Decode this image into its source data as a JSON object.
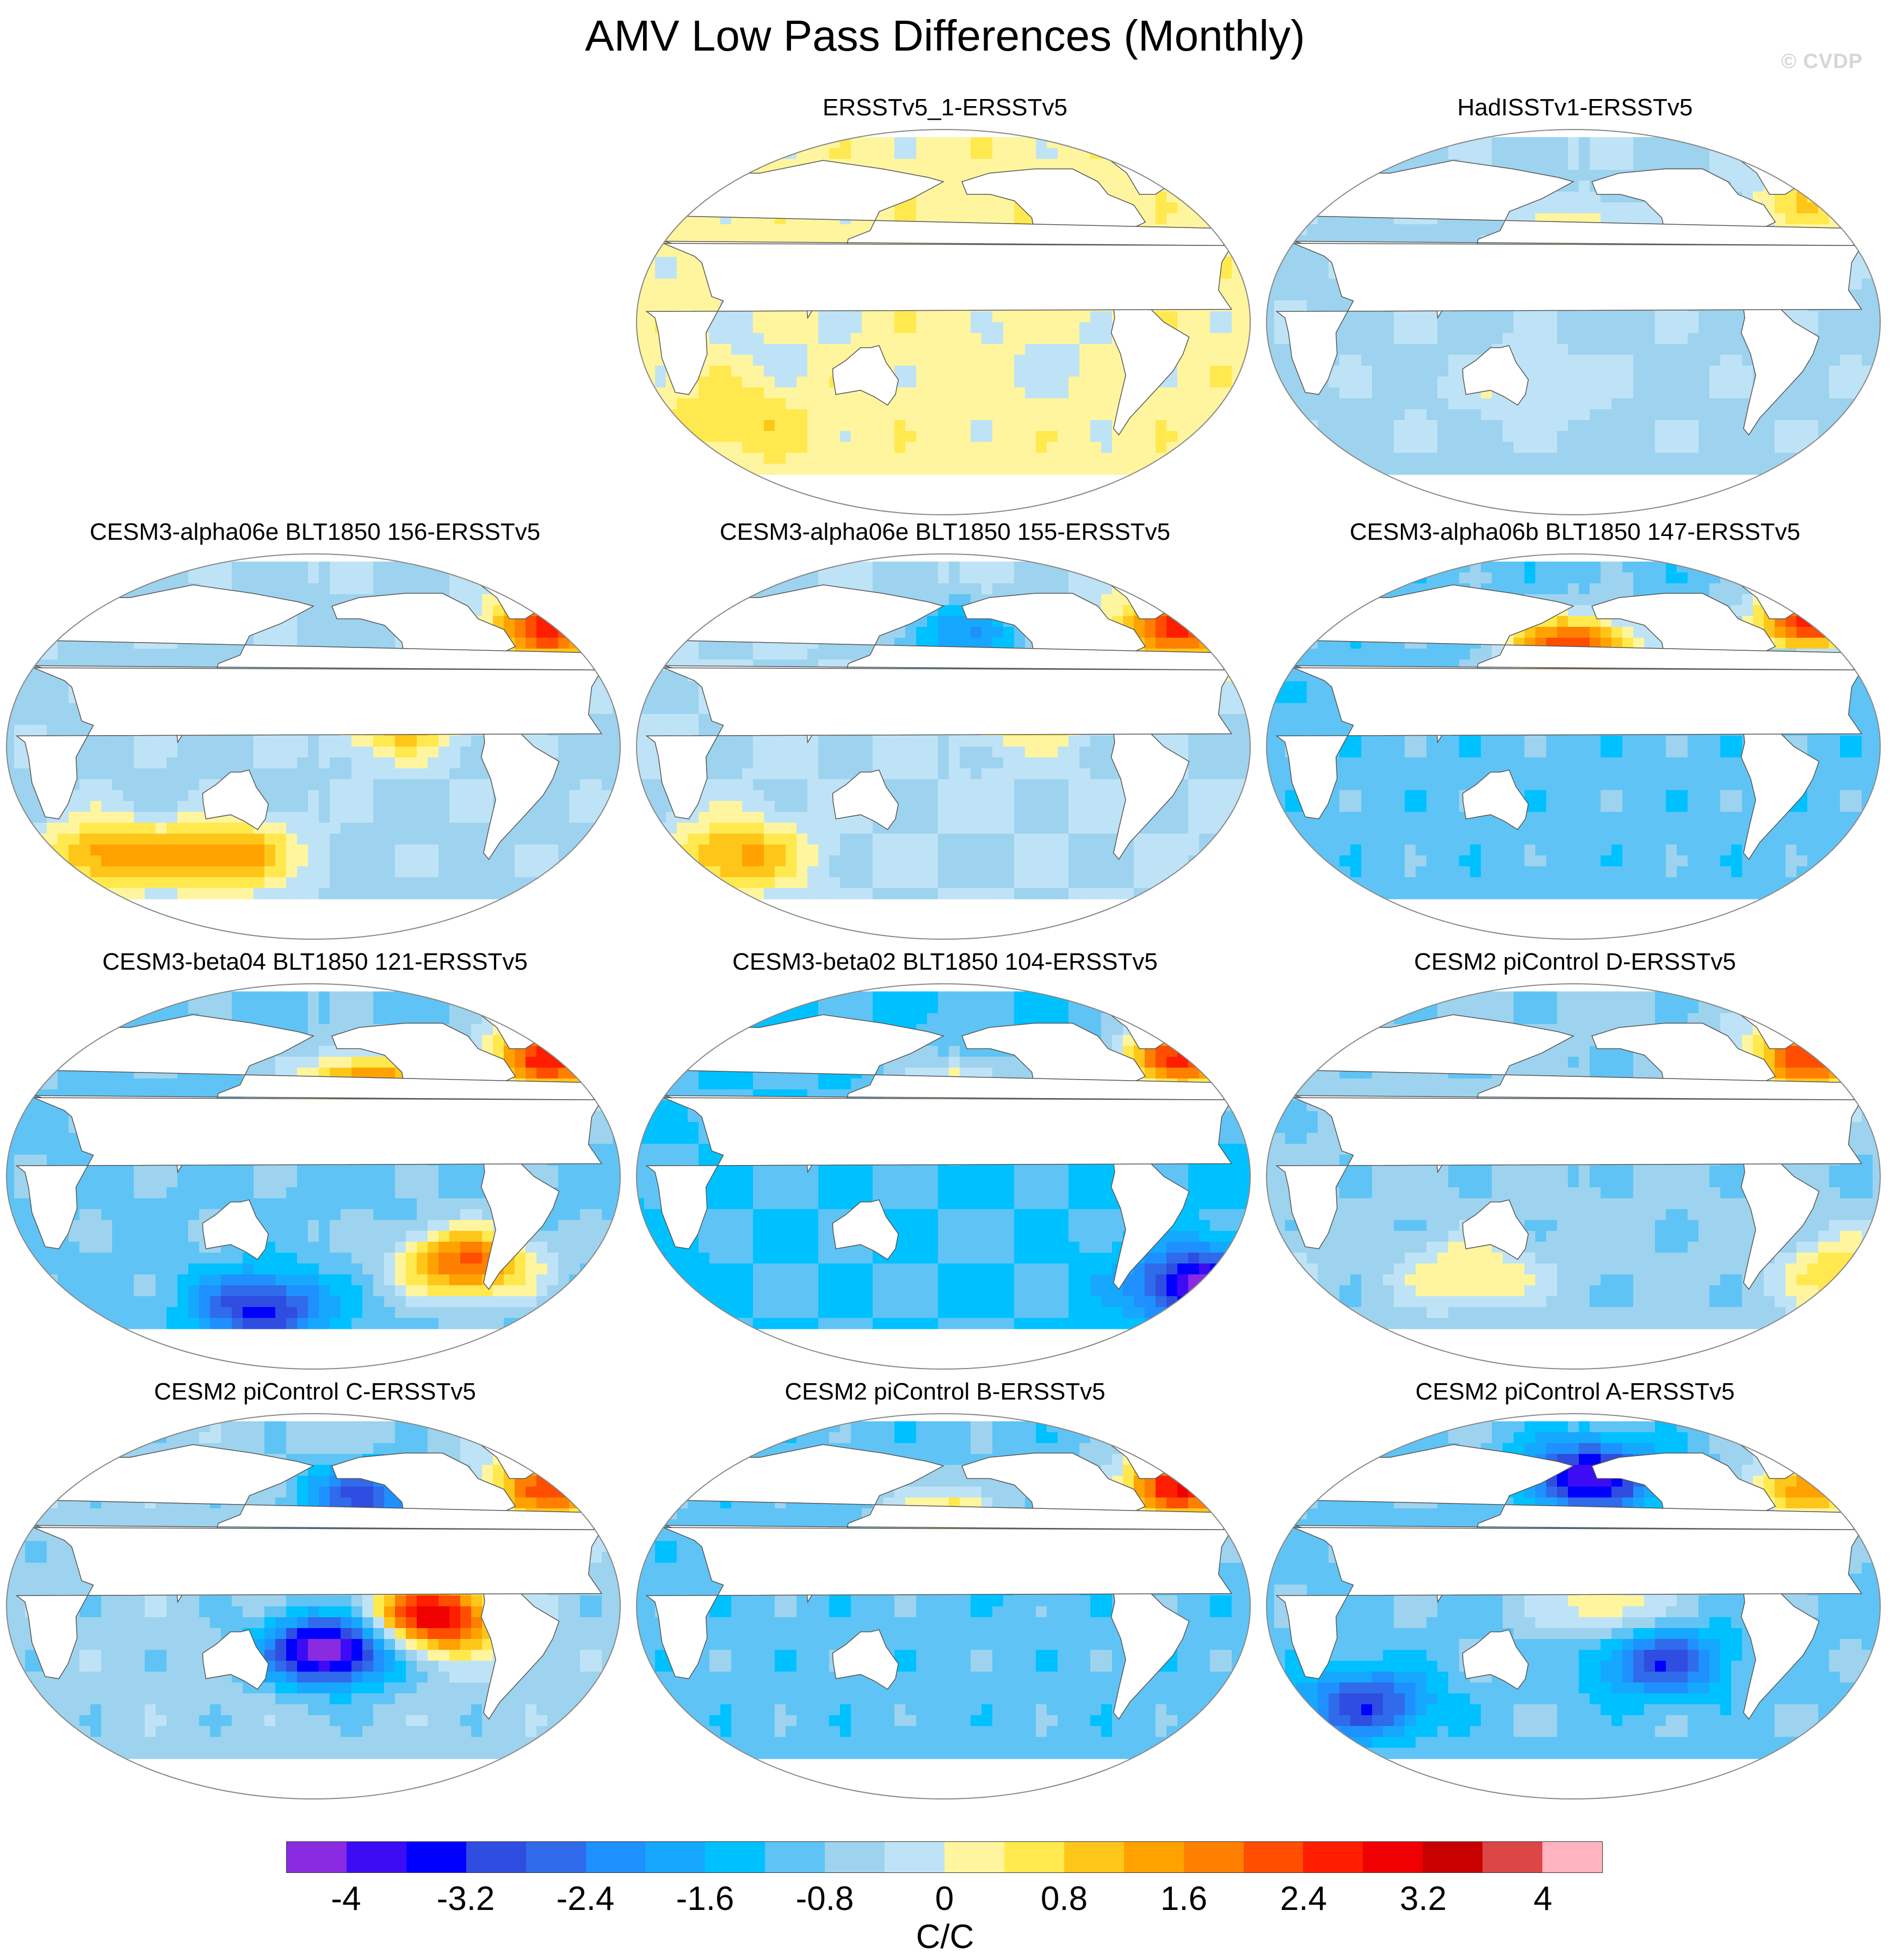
{
  "title": "AMV Low Pass Differences (Monthly)",
  "watermark": "© CVDP",
  "panels": [
    {
      "title": "ERSSTv5_1-ERSSTv5",
      "base": 0.2,
      "blobs": [
        {
          "lon": -150,
          "lat": 40,
          "v": 0.3
        },
        {
          "lon": 60,
          "lat": -45,
          "v": 0.6
        },
        {
          "lon": -120,
          "lat": -20,
          "v": -0.3
        },
        {
          "lon": 80,
          "lat": -10,
          "v": -0.3
        }
      ]
    },
    {
      "title": "HadISSTv1-ERSSTv5",
      "base": -0.5,
      "blobs": [
        {
          "lon": -170,
          "lat": 40,
          "v": 0.8
        },
        {
          "lon": -40,
          "lat": 55,
          "v": 1.2
        },
        {
          "lon": 150,
          "lat": -30,
          "v": 0.5
        }
      ]
    },
    {
      "title": "CESM3-alpha06e BLT1850 156-ERSSTv5",
      "base": -0.5,
      "blobs": [
        {
          "lon": -130,
          "lat": 10,
          "v": 1.4
        },
        {
          "lon": -40,
          "lat": 55,
          "v": 3.0
        },
        {
          "lon": 60,
          "lat": -50,
          "v": 2.0
        },
        {
          "lon": 130,
          "lat": -50,
          "v": 2.0
        }
      ]
    },
    {
      "title": "CESM3-alpha06e BLT1850 155-ERSSTv5",
      "base": -0.4,
      "blobs": [
        {
          "lon": -130,
          "lat": 20,
          "v": 1.8
        },
        {
          "lon": -40,
          "lat": 55,
          "v": 2.8
        },
        {
          "lon": 60,
          "lat": -50,
          "v": 1.8
        },
        {
          "lon": -170,
          "lat": 50,
          "v": -1.5
        }
      ]
    },
    {
      "title": "CESM3-alpha06b BLT1850 147-ERSSTv5",
      "base": -1.0,
      "blobs": [
        {
          "lon": -180,
          "lat": 45,
          "v": 3.4
        },
        {
          "lon": -40,
          "lat": 55,
          "v": 4.2
        },
        {
          "lon": -45,
          "lat": 42,
          "v": -1.6
        }
      ]
    },
    {
      "title": "CESM3-beta04 BLT1850 121-ERSSTv5",
      "base": -0.9,
      "blobs": [
        {
          "lon": -150,
          "lat": 40,
          "v": 3.0
        },
        {
          "lon": -40,
          "lat": 55,
          "v": 3.6
        },
        {
          "lon": -90,
          "lat": -40,
          "v": 3.0
        },
        {
          "lon": 150,
          "lat": -60,
          "v": -2.5
        }
      ]
    },
    {
      "title": "CESM3-beta02 BLT1850 104-ERSSTv5",
      "base": -1.2,
      "blobs": [
        {
          "lon": -170,
          "lat": 40,
          "v": 1.6
        },
        {
          "lon": -40,
          "lat": 55,
          "v": 3.6
        },
        {
          "lon": -30,
          "lat": -50,
          "v": -3.0
        }
      ]
    },
    {
      "title": "CESM2 piControl D-ERSSTv5",
      "base": -0.7,
      "blobs": [
        {
          "lon": -40,
          "lat": 55,
          "v": 3.0
        },
        {
          "lon": 120,
          "lat": -45,
          "v": 1.2
        },
        {
          "lon": -20,
          "lat": -45,
          "v": 1.6
        }
      ]
    },
    {
      "title": "CESM2 piControl C-ERSSTv5",
      "base": -0.6,
      "blobs": [
        {
          "lon": -110,
          "lat": -5,
          "v": 3.8
        },
        {
          "lon": -170,
          "lat": -20,
          "v": -4.0
        },
        {
          "lon": -40,
          "lat": 55,
          "v": 2.8
        },
        {
          "lon": -150,
          "lat": 50,
          "v": -2.2
        }
      ]
    },
    {
      "title": "CESM2 piControl B-ERSSTv5",
      "base": -1.0,
      "blobs": [
        {
          "lon": -170,
          "lat": 40,
          "v": 2.0
        },
        {
          "lon": -40,
          "lat": 55,
          "v": 3.8
        },
        {
          "lon": -130,
          "lat": 30,
          "v": -1.8
        }
      ]
    },
    {
      "title": "CESM2 piControl A-ERSSTv5",
      "base": -0.9,
      "blobs": [
        {
          "lon": -40,
          "lat": 55,
          "v": 2.2
        },
        {
          "lon": -170,
          "lat": 60,
          "v": -3.0
        },
        {
          "lon": 60,
          "lat": -45,
          "v": -2.2
        },
        {
          "lon": -130,
          "lat": -25,
          "v": -2.2
        },
        {
          "lon": -160,
          "lat": 0,
          "v": 1.4
        }
      ]
    }
  ],
  "colorbar": {
    "colors": [
      "#8a2be2",
      "#3d0cf5",
      "#0000ff",
      "#2f4de0",
      "#2f6bea",
      "#1f90ff",
      "#16a8ff",
      "#00c1ff",
      "#5fc4f5",
      "#9dd3ee",
      "#bfe3f6",
      "#fff59e",
      "#ffe94e",
      "#ffc61a",
      "#ffa200",
      "#ff7f00",
      "#ff4e00",
      "#ff1e00",
      "#f00000",
      "#c80000",
      "#dc4646",
      "#ffb4bf"
    ],
    "labels": [
      "-4",
      "-3.2",
      "-2.4",
      "-1.6",
      "-0.8",
      "0",
      "0.8",
      "1.6",
      "2.4",
      "3.2",
      "4"
    ],
    "units": "C/C"
  }
}
